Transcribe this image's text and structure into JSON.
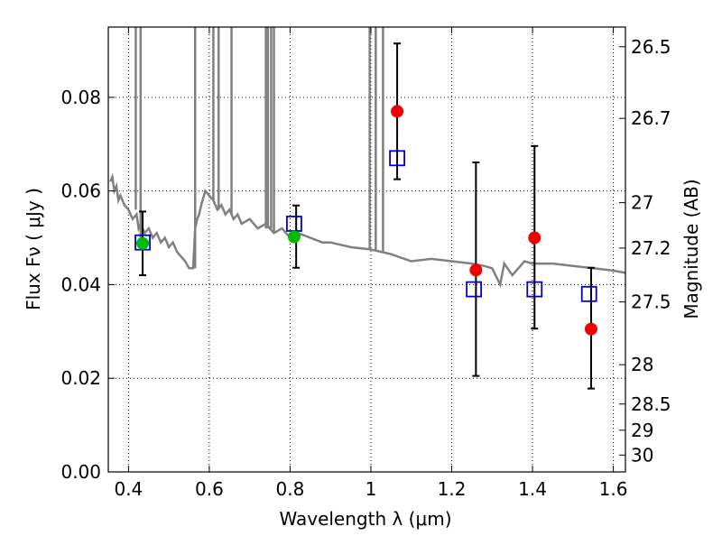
{
  "chart_data": {
    "type": "scatter",
    "xlabel": "Wavelength  λ (μm)",
    "ylabel": "Flux  Fν  ( μJy )",
    "ylabel_right": "Magnitude (AB)",
    "xlim": [
      0.35,
      1.63
    ],
    "ylim": [
      0.0,
      0.095
    ],
    "grid": true,
    "x_ticks": [
      0.4,
      0.6,
      0.8,
      1.0,
      1.2,
      1.4,
      1.6
    ],
    "x_tick_labels": [
      "0.4",
      "0.6",
      "0.8",
      "1",
      "1.2",
      "1.4",
      "1.6"
    ],
    "y_ticks": [
      0.0,
      0.02,
      0.04,
      0.06,
      0.08
    ],
    "y_tick_labels": [
      "0.00",
      "0.02",
      "0.04",
      "0.06",
      "0.08"
    ],
    "right_ticks": [
      {
        "flux": 0.0908,
        "label": "26.5"
      },
      {
        "flux": 0.0755,
        "label": "26.7"
      },
      {
        "flux": 0.0575,
        "label": "27"
      },
      {
        "flux": 0.0478,
        "label": "27.2"
      },
      {
        "flux": 0.0363,
        "label": "27.5"
      },
      {
        "flux": 0.0229,
        "label": "28"
      },
      {
        "flux": 0.0145,
        "label": "28.5"
      },
      {
        "flux": 0.0089,
        "label": "29"
      },
      {
        "flux": 0.0036,
        "label": "30"
      }
    ],
    "series": [
      {
        "type": "line",
        "color": "#808080",
        "x": [
          0.355,
          0.36,
          0.365,
          0.37,
          0.375,
          0.38,
          0.39,
          0.4,
          0.41,
          0.42,
          0.425,
          0.43,
          0.44,
          0.45,
          0.46,
          0.47,
          0.48,
          0.49,
          0.5,
          0.51,
          0.52,
          0.53,
          0.54,
          0.55,
          0.56,
          0.565,
          0.57,
          0.575,
          0.58,
          0.59,
          0.6,
          0.61,
          0.62,
          0.63,
          0.64,
          0.65,
          0.66,
          0.67,
          0.68,
          0.7,
          0.72,
          0.74,
          0.76,
          0.78,
          0.8,
          0.82,
          0.85,
          0.88,
          0.9,
          0.95,
          1.0,
          1.05,
          1.1,
          1.15,
          1.2,
          1.25,
          1.28,
          1.3,
          1.32,
          1.33,
          1.35,
          1.38,
          1.4,
          1.45,
          1.5,
          1.55,
          1.6,
          1.63
        ],
        "y": [
          0.062,
          0.063,
          0.06,
          0.061,
          0.058,
          0.059,
          0.057,
          0.056,
          0.054,
          0.055,
          0.052,
          0.053,
          0.051,
          0.052,
          0.05,
          0.051,
          0.049,
          0.05,
          0.048,
          0.049,
          0.047,
          0.046,
          0.045,
          0.0435,
          0.0435,
          0.052,
          0.054,
          0.055,
          0.057,
          0.06,
          0.059,
          0.058,
          0.056,
          0.057,
          0.055,
          0.056,
          0.054,
          0.055,
          0.053,
          0.054,
          0.052,
          0.053,
          0.051,
          0.052,
          0.05,
          0.051,
          0.05,
          0.049,
          0.049,
          0.048,
          0.0475,
          0.0465,
          0.045,
          0.0455,
          0.045,
          0.0445,
          0.044,
          0.0435,
          0.04,
          0.0445,
          0.042,
          0.045,
          0.0445,
          0.0445,
          0.044,
          0.0435,
          0.043,
          0.0425
        ]
      },
      {
        "type": "points",
        "marker": "square-open",
        "color": "#0000cc",
        "x": [
          0.435,
          0.81,
          1.065,
          1.255,
          1.405,
          1.54
        ],
        "y": [
          0.049,
          0.053,
          0.067,
          0.039,
          0.039,
          0.038
        ]
      },
      {
        "type": "points",
        "marker": "circle",
        "color": "#00bb00",
        "x": [
          0.435,
          0.81
        ],
        "y": [
          0.0488,
          0.0502
        ]
      },
      {
        "type": "points",
        "marker": "circle",
        "color": "#ee0000",
        "x": [
          1.065,
          1.26,
          1.405,
          1.545
        ],
        "y": [
          0.077,
          0.0431,
          0.05,
          0.0305
        ],
        "err_low": [
          0.0625,
          0.0205,
          0.0306,
          0.0178
        ],
        "err_high": [
          0.0915,
          0.0661,
          0.0696,
          0.0436
        ]
      }
    ],
    "errorbars": [
      {
        "x": 0.435,
        "low": 0.042,
        "high": 0.0556
      },
      {
        "x": 0.815,
        "low": 0.0436,
        "high": 0.0569
      }
    ],
    "spikes": [
      {
        "x": 0.418,
        "y0": 0.056
      },
      {
        "x": 0.43,
        "y0": 0.05
      },
      {
        "x": 0.565,
        "y0": 0.0435
      },
      {
        "x": 0.61,
        "y0": 0.058
      },
      {
        "x": 0.623,
        "y0": 0.056
      },
      {
        "x": 0.655,
        "y0": 0.055
      },
      {
        "x": 0.74,
        "y0": 0.052
      },
      {
        "x": 0.745,
        "y0": 0.052
      },
      {
        "x": 0.753,
        "y0": 0.052
      },
      {
        "x": 0.76,
        "y0": 0.051
      },
      {
        "x": 0.997,
        "y0": 0.0475
      },
      {
        "x": 1.012,
        "y0": 0.0475
      },
      {
        "x": 1.03,
        "y0": 0.047
      }
    ]
  }
}
